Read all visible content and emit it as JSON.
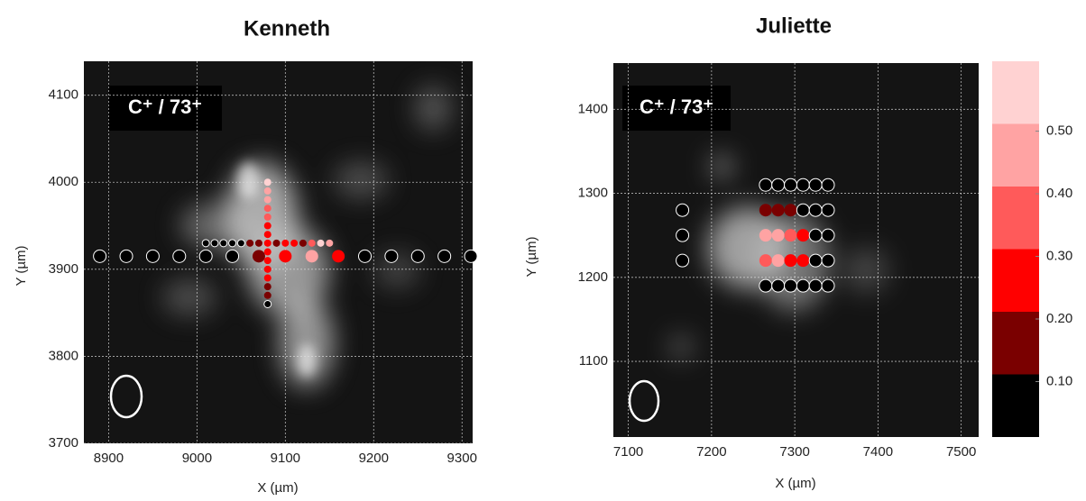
{
  "chart_data": [
    {
      "type": "scatter",
      "title": "Kenneth",
      "annotation": "C⁺ / 73⁺",
      "x_label": "X (µm)",
      "y_label": "Y (µm)",
      "xlim": [
        8872,
        9312
      ],
      "ylim": [
        3700,
        4139
      ],
      "xticks": [
        8900,
        9000,
        9100,
        9200,
        9300
      ],
      "yticks": [
        3700,
        3800,
        3900,
        4000,
        4100
      ],
      "grid": true,
      "series": [
        {
          "x": [
            8890,
            8920,
            8950,
            8980,
            9010,
            9040,
            9070,
            9100,
            9130,
            9160,
            9190,
            9220,
            9250,
            9280,
            9310
          ],
          "y": [
            3915,
            3915,
            3915,
            3915,
            3915,
            3915,
            3915,
            3915,
            3915,
            3915,
            3915,
            3915,
            3915,
            3915,
            3915
          ],
          "values": [
            0.05,
            0.05,
            0.05,
            0.05,
            0.05,
            0.05,
            0.12,
            0.25,
            0.45,
            0.28,
            0.05,
            0.05,
            0.05,
            0.05,
            0.05
          ]
        },
        {
          "x": [
            9010,
            9020,
            9030,
            9040,
            9050,
            9060,
            9070,
            9090,
            9100,
            9110,
            9120,
            9130,
            9140,
            9150
          ],
          "y": [
            3930,
            3930,
            3930,
            3930,
            3930,
            3930,
            3930,
            3930,
            3930,
            3930,
            3930,
            3930,
            3930,
            3930
          ],
          "values": [
            0.05,
            0.05,
            0.05,
            0.05,
            0.08,
            0.15,
            0.15,
            0.18,
            0.2,
            0.22,
            0.15,
            0.35,
            0.5,
            0.45
          ]
        },
        {
          "x": [
            9080,
            9080,
            9080,
            9080,
            9080,
            9080,
            9080,
            9080,
            9080,
            9080,
            9080,
            9080,
            9080,
            9080,
            9080
          ],
          "y": [
            3860,
            3870,
            3880,
            3890,
            3900,
            3910,
            3920,
            3930,
            3940,
            3950,
            3960,
            3970,
            3980,
            3990,
            4000
          ],
          "values": [
            0.05,
            0.12,
            0.15,
            0.25,
            0.22,
            0.25,
            0.28,
            0.25,
            0.22,
            0.25,
            0.3,
            0.35,
            0.4,
            0.45,
            0.5
          ]
        }
      ]
    },
    {
      "type": "scatter",
      "title": "Juliette",
      "annotation": "C⁺ / 73⁺",
      "x_label": "X (µm)",
      "y_label": "Y (µm)",
      "xlim": [
        7082,
        7521
      ],
      "ylim": [
        1010,
        1455
      ],
      "xticks": [
        7100,
        7200,
        7300,
        7400,
        7500
      ],
      "yticks": [
        1100,
        1200,
        1300,
        1400
      ],
      "grid": true,
      "series": [
        {
          "x": [
            7165,
            7165,
            7165,
            7265,
            7280,
            7295,
            7310,
            7325,
            7340,
            7265,
            7280,
            7295,
            7310,
            7325,
            7340,
            7265,
            7280,
            7295,
            7310,
            7325,
            7340,
            7265,
            7280,
            7295,
            7310,
            7325,
            7340,
            7265,
            7280,
            7295,
            7310,
            7325,
            7340
          ],
          "y": [
            1280,
            1250,
            1220,
            1310,
            1310,
            1310,
            1310,
            1310,
            1310,
            1280,
            1280,
            1280,
            1280,
            1280,
            1280,
            1250,
            1250,
            1250,
            1250,
            1250,
            1250,
            1220,
            1220,
            1220,
            1220,
            1220,
            1220,
            1190,
            1190,
            1190,
            1190,
            1190,
            1190
          ],
          "values": [
            0.05,
            0.05,
            0.05,
            0.05,
            0.05,
            0.05,
            0.05,
            0.05,
            0.05,
            0.12,
            0.12,
            0.15,
            0.05,
            0.05,
            0.05,
            0.45,
            0.45,
            0.35,
            0.25,
            0.05,
            0.05,
            0.3,
            0.45,
            0.28,
            0.25,
            0.05,
            0.05,
            0.05,
            0.05,
            0.05,
            0.05,
            0.05,
            0.05
          ]
        }
      ]
    }
  ],
  "colorbar": {
    "bounds": [
      0,
      0.1,
      0.2,
      0.3,
      0.4,
      0.5,
      0.6
    ],
    "colors": [
      "#000000",
      "#7a0000",
      "#ff0000",
      "#ff5a5a",
      "#ffa3a3",
      "#ffd2d2"
    ],
    "ticks": [
      {
        "value": 0.1,
        "label": "0.10"
      },
      {
        "value": 0.2,
        "label": "0.20"
      },
      {
        "value": 0.3,
        "label": "0.30"
      },
      {
        "value": 0.4,
        "label": "0.40"
      },
      {
        "value": 0.5,
        "label": "0.50"
      }
    ]
  }
}
